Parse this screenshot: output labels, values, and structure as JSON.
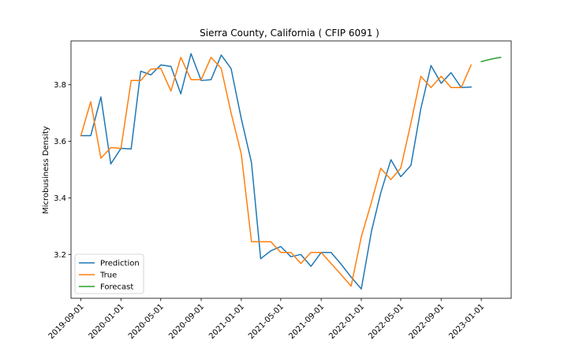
{
  "chart_data": {
    "type": "line",
    "title": "Sierra County, California ( CFIP 6091 )",
    "xlabel": "",
    "ylabel": "Microbusiness Density",
    "ylim": [
      3.045,
      3.955
    ],
    "xlim": [
      "2019-08-02",
      "2023-04-02"
    ],
    "grid": false,
    "legend_position": "lower left",
    "x_ticks": [
      "2019-09-01",
      "2020-01-01",
      "2020-05-01",
      "2020-09-01",
      "2021-01-01",
      "2021-05-01",
      "2021-09-01",
      "2022-01-01",
      "2022-05-01",
      "2022-09-01",
      "2023-01-01"
    ],
    "y_ticks": [
      3.2,
      3.4,
      3.6,
      3.8
    ],
    "y_tick_labels": [
      "3.2",
      "3.4",
      "3.6",
      "3.8"
    ],
    "series": [
      {
        "name": "Prediction",
        "color": "#1f77b4",
        "points": [
          [
            "2019-09-01",
            3.62
          ],
          [
            "2019-10-01",
            3.62
          ],
          [
            "2019-11-01",
            3.757
          ],
          [
            "2019-12-01",
            3.52
          ],
          [
            "2020-01-01",
            3.575
          ],
          [
            "2020-02-01",
            3.573
          ],
          [
            "2020-03-01",
            3.848
          ],
          [
            "2020-04-01",
            3.835
          ],
          [
            "2020-05-01",
            3.87
          ],
          [
            "2020-06-01",
            3.865
          ],
          [
            "2020-07-01",
            3.768
          ],
          [
            "2020-08-01",
            3.91
          ],
          [
            "2020-09-01",
            3.815
          ],
          [
            "2020-10-01",
            3.818
          ],
          [
            "2020-11-01",
            3.905
          ],
          [
            "2020-12-01",
            3.857
          ],
          [
            "2021-01-01",
            3.68
          ],
          [
            "2021-02-01",
            3.525
          ],
          [
            "2021-03-01",
            3.185
          ],
          [
            "2021-04-01",
            3.213
          ],
          [
            "2021-05-01",
            3.228
          ],
          [
            "2021-06-01",
            3.192
          ],
          [
            "2021-07-01",
            3.2
          ],
          [
            "2021-08-01",
            3.158
          ],
          [
            "2021-09-01",
            3.207
          ],
          [
            "2021-10-01",
            3.207
          ],
          [
            "2021-11-01",
            3.165
          ],
          [
            "2021-12-01",
            3.12
          ],
          [
            "2022-01-01",
            3.078
          ],
          [
            "2022-02-01",
            3.282
          ],
          [
            "2022-03-01",
            3.417
          ],
          [
            "2022-04-01",
            3.535
          ],
          [
            "2022-05-01",
            3.475
          ],
          [
            "2022-06-01",
            3.515
          ],
          [
            "2022-07-01",
            3.715
          ],
          [
            "2022-08-01",
            3.868
          ],
          [
            "2022-09-01",
            3.805
          ],
          [
            "2022-10-01",
            3.843
          ],
          [
            "2022-11-01",
            3.79
          ],
          [
            "2022-12-01",
            3.792
          ]
        ]
      },
      {
        "name": "True",
        "color": "#ff7f0e",
        "points": [
          [
            "2019-09-01",
            3.62
          ],
          [
            "2019-10-01",
            3.74
          ],
          [
            "2019-11-01",
            3.54
          ],
          [
            "2019-12-01",
            3.578
          ],
          [
            "2020-01-01",
            3.575
          ],
          [
            "2020-02-01",
            3.815
          ],
          [
            "2020-03-01",
            3.815
          ],
          [
            "2020-04-01",
            3.855
          ],
          [
            "2020-05-01",
            3.858
          ],
          [
            "2020-06-01",
            3.778
          ],
          [
            "2020-07-01",
            3.897
          ],
          [
            "2020-08-01",
            3.818
          ],
          [
            "2020-09-01",
            3.818
          ],
          [
            "2020-10-01",
            3.897
          ],
          [
            "2020-11-01",
            3.858
          ],
          [
            "2020-12-01",
            3.7
          ],
          [
            "2021-01-01",
            3.555
          ],
          [
            "2021-02-01",
            3.245
          ],
          [
            "2021-03-01",
            3.245
          ],
          [
            "2021-04-01",
            3.245
          ],
          [
            "2021-05-01",
            3.207
          ],
          [
            "2021-06-01",
            3.207
          ],
          [
            "2021-07-01",
            3.168
          ],
          [
            "2021-08-01",
            3.207
          ],
          [
            "2021-09-01",
            3.207
          ],
          [
            "2021-10-01",
            3.168
          ],
          [
            "2021-11-01",
            3.128
          ],
          [
            "2021-12-01",
            3.088
          ],
          [
            "2022-01-01",
            3.262
          ],
          [
            "2022-02-01",
            3.385
          ],
          [
            "2022-03-01",
            3.505
          ],
          [
            "2022-04-01",
            3.465
          ],
          [
            "2022-05-01",
            3.505
          ],
          [
            "2022-06-01",
            3.665
          ],
          [
            "2022-07-01",
            3.83
          ],
          [
            "2022-08-01",
            3.79
          ],
          [
            "2022-09-01",
            3.83
          ],
          [
            "2022-10-01",
            3.79
          ],
          [
            "2022-11-01",
            3.79
          ],
          [
            "2022-12-01",
            3.87
          ]
        ]
      },
      {
        "name": "Forecast",
        "color": "#2ca02c",
        "points": [
          [
            "2023-01-01",
            3.882
          ],
          [
            "2023-02-01",
            3.891
          ],
          [
            "2023-03-01",
            3.897
          ]
        ]
      }
    ]
  }
}
